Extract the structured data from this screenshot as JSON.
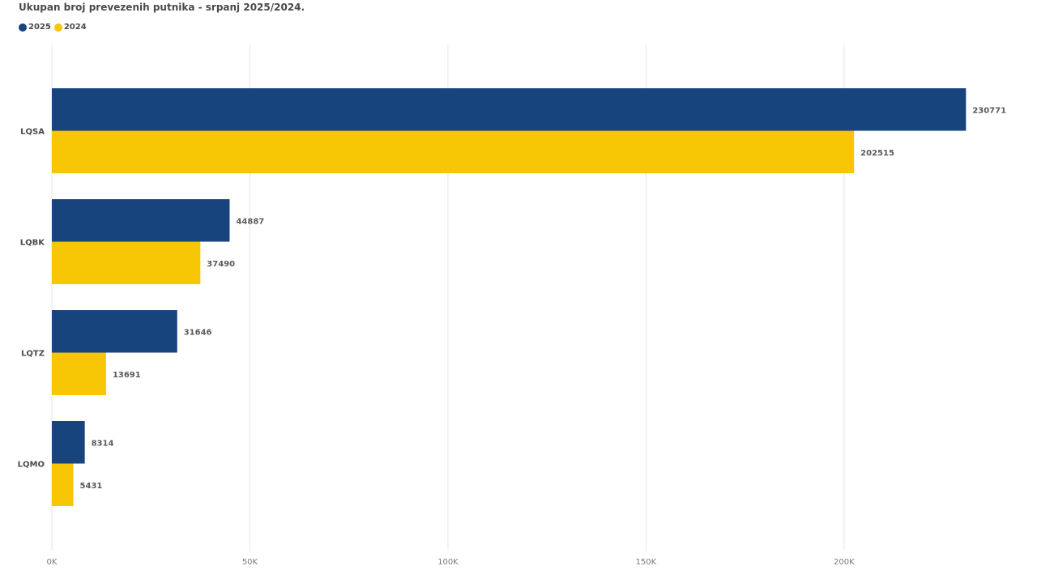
{
  "chart_data": {
    "type": "bar",
    "orientation": "horizontal",
    "title": "Ukupan broj prevezenih putnika - srpanj 2025/2024.",
    "categories": [
      "LQSA",
      "LQBK",
      "LQTZ",
      "LQMO"
    ],
    "series": [
      {
        "name": "2025",
        "color": "#17447c",
        "values": [
          230771,
          44887,
          31646,
          8314
        ]
      },
      {
        "name": "2024",
        "color": "#f7c604",
        "values": [
          202515,
          37490,
          13691,
          5431
        ]
      }
    ],
    "xlim": [
      0,
      235000
    ],
    "x_ticks": [
      0,
      50000,
      100000,
      150000,
      200000
    ],
    "x_tick_labels": [
      "0K",
      "50K",
      "100K",
      "150K",
      "200K"
    ],
    "grid": true,
    "legend_placement": "top-left",
    "data_labels": true
  }
}
